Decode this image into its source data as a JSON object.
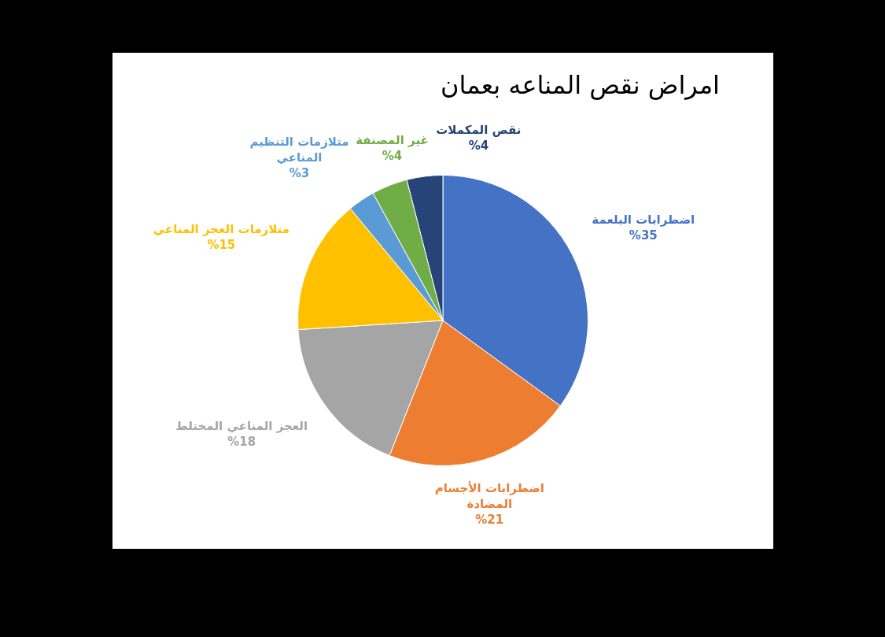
{
  "chart_data": {
    "type": "pie",
    "title": "امراض نقص المناعه بعمان",
    "categories": [
      "اضطرابات البلعمة",
      "اضطرابات الأجسام المضادة",
      "العجز المناعي المختلط",
      "متلازمات العجز المناعي",
      "متلازمات التنظيم المناعي",
      "غير المصنفة",
      "نقص المكملات"
    ],
    "values": [
      35,
      21,
      18,
      15,
      3,
      4,
      4
    ],
    "colors": [
      "#4472c4",
      "#ed7d31",
      "#a5a5a5",
      "#ffc000",
      "#5b9bd5",
      "#70ad47",
      "#264478"
    ],
    "value_labels": [
      "%35",
      "%21",
      "%18",
      "%15",
      "%3",
      "%4",
      "%4"
    ]
  }
}
